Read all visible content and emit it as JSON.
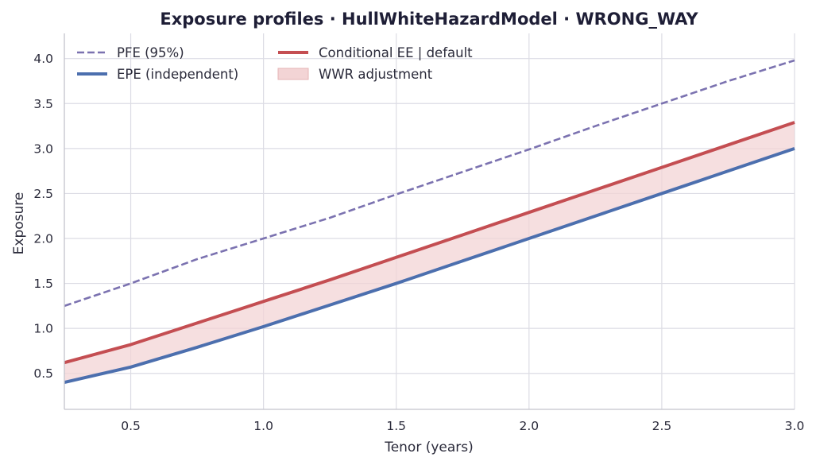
{
  "chart_data": {
    "type": "line",
    "title": "Exposure profiles  ·  HullWhiteHazardModel  ·  WRONG_WAY",
    "xlabel": "Tenor (years)",
    "ylabel": "Exposure",
    "xlim": [
      0.25,
      3.0
    ],
    "ylim": [
      0.1,
      4.28
    ],
    "grid": true,
    "legend_position": "top-left",
    "x_ticks": [
      "0.5",
      "1.0",
      "1.5",
      "2.0",
      "2.5",
      "3.0"
    ],
    "y_ticks": [
      "0.5",
      "1.0",
      "1.5",
      "2.0",
      "2.5",
      "3.0",
      "3.5",
      "4.0"
    ],
    "x": [
      0.25,
      0.5,
      0.75,
      1.0,
      1.25,
      1.5,
      1.75,
      2.0,
      2.25,
      2.5,
      2.75,
      3.0
    ],
    "series": [
      {
        "name": "PFE (95%)",
        "style": "dashed",
        "color": "#7b72b0",
        "values": [
          1.25,
          1.5,
          1.77,
          2.0,
          2.23,
          2.49,
          2.74,
          2.99,
          3.25,
          3.5,
          3.75,
          3.98
        ]
      },
      {
        "name": "EPE (independent)",
        "style": "solid",
        "color": "#4c6fae",
        "values": [
          0.4,
          0.57,
          0.79,
          1.02,
          1.26,
          1.5,
          1.75,
          2.0,
          2.25,
          2.5,
          2.75,
          3.0
        ]
      },
      {
        "name": "Conditional EE | default",
        "style": "solid",
        "color": "#c44e52",
        "values": [
          0.62,
          0.82,
          1.06,
          1.3,
          1.54,
          1.79,
          2.04,
          2.29,
          2.54,
          2.79,
          3.04,
          3.29
        ]
      }
    ],
    "band": {
      "name": "WWR adjustment",
      "color": "#f3d4d5",
      "lower_series": "EPE (independent)",
      "upper_series": "Conditional EE | default"
    }
  }
}
